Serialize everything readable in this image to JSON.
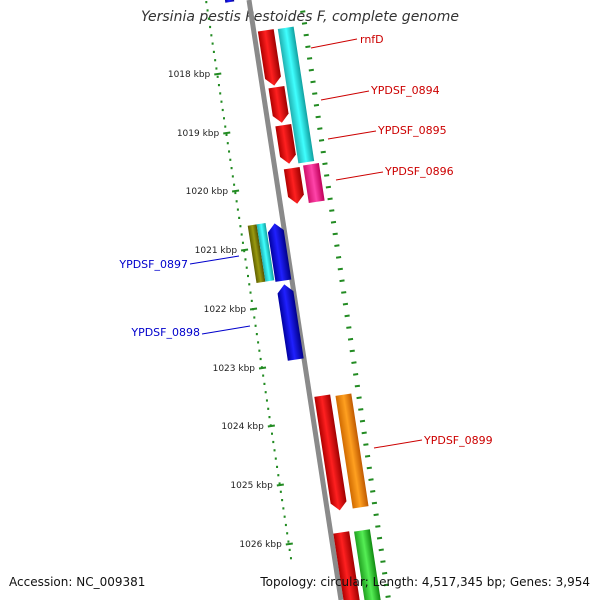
{
  "title": "Yersinia pestis Pestoides F, complete genome",
  "footer": {
    "accession": "Accession: NC_009381",
    "topology": "Topology: circular; Length: 4,517,345 bp; Genes: 3,954"
  },
  "scale": {
    "labels": [
      "1018 kbp",
      "1019 kbp",
      "1020 kbp",
      "1021 kbp",
      "1022 kbp",
      "1023 kbp",
      "1024 kbp",
      "1025 kbp",
      "1026 kbp"
    ],
    "tick_color": "#228b22"
  },
  "gene_labels": [
    {
      "id": "rnfD",
      "text": "rnfD",
      "color": "#cc0000"
    },
    {
      "id": "ypdsf-0894",
      "text": "YPDSF_0894",
      "color": "#cc0000"
    },
    {
      "id": "ypdsf-0895",
      "text": "YPDSF_0895",
      "color": "#cc0000"
    },
    {
      "id": "ypdsf-0896",
      "text": "YPDSF_0896",
      "color": "#cc0000"
    },
    {
      "id": "ypdsf-0897",
      "text": "YPDSF_0897",
      "color": "#0000cc"
    },
    {
      "id": "ypdsf-0898",
      "text": "YPDSF_0898",
      "color": "#0000cc"
    },
    {
      "id": "ypdsf-0899",
      "text": "YPDSF_0899",
      "color": "#cc0000"
    }
  ],
  "colors": {
    "backbone": "#8a8a8a",
    "forward_gene": "#ff0000",
    "reverse_gene": "#0000ff",
    "cyan_feature": "#00e5e5",
    "magenta_feature": "#ff3399",
    "orange_feature": "#ff8c00",
    "green_feature": "#33cc33",
    "olive_feature": "#808000"
  }
}
